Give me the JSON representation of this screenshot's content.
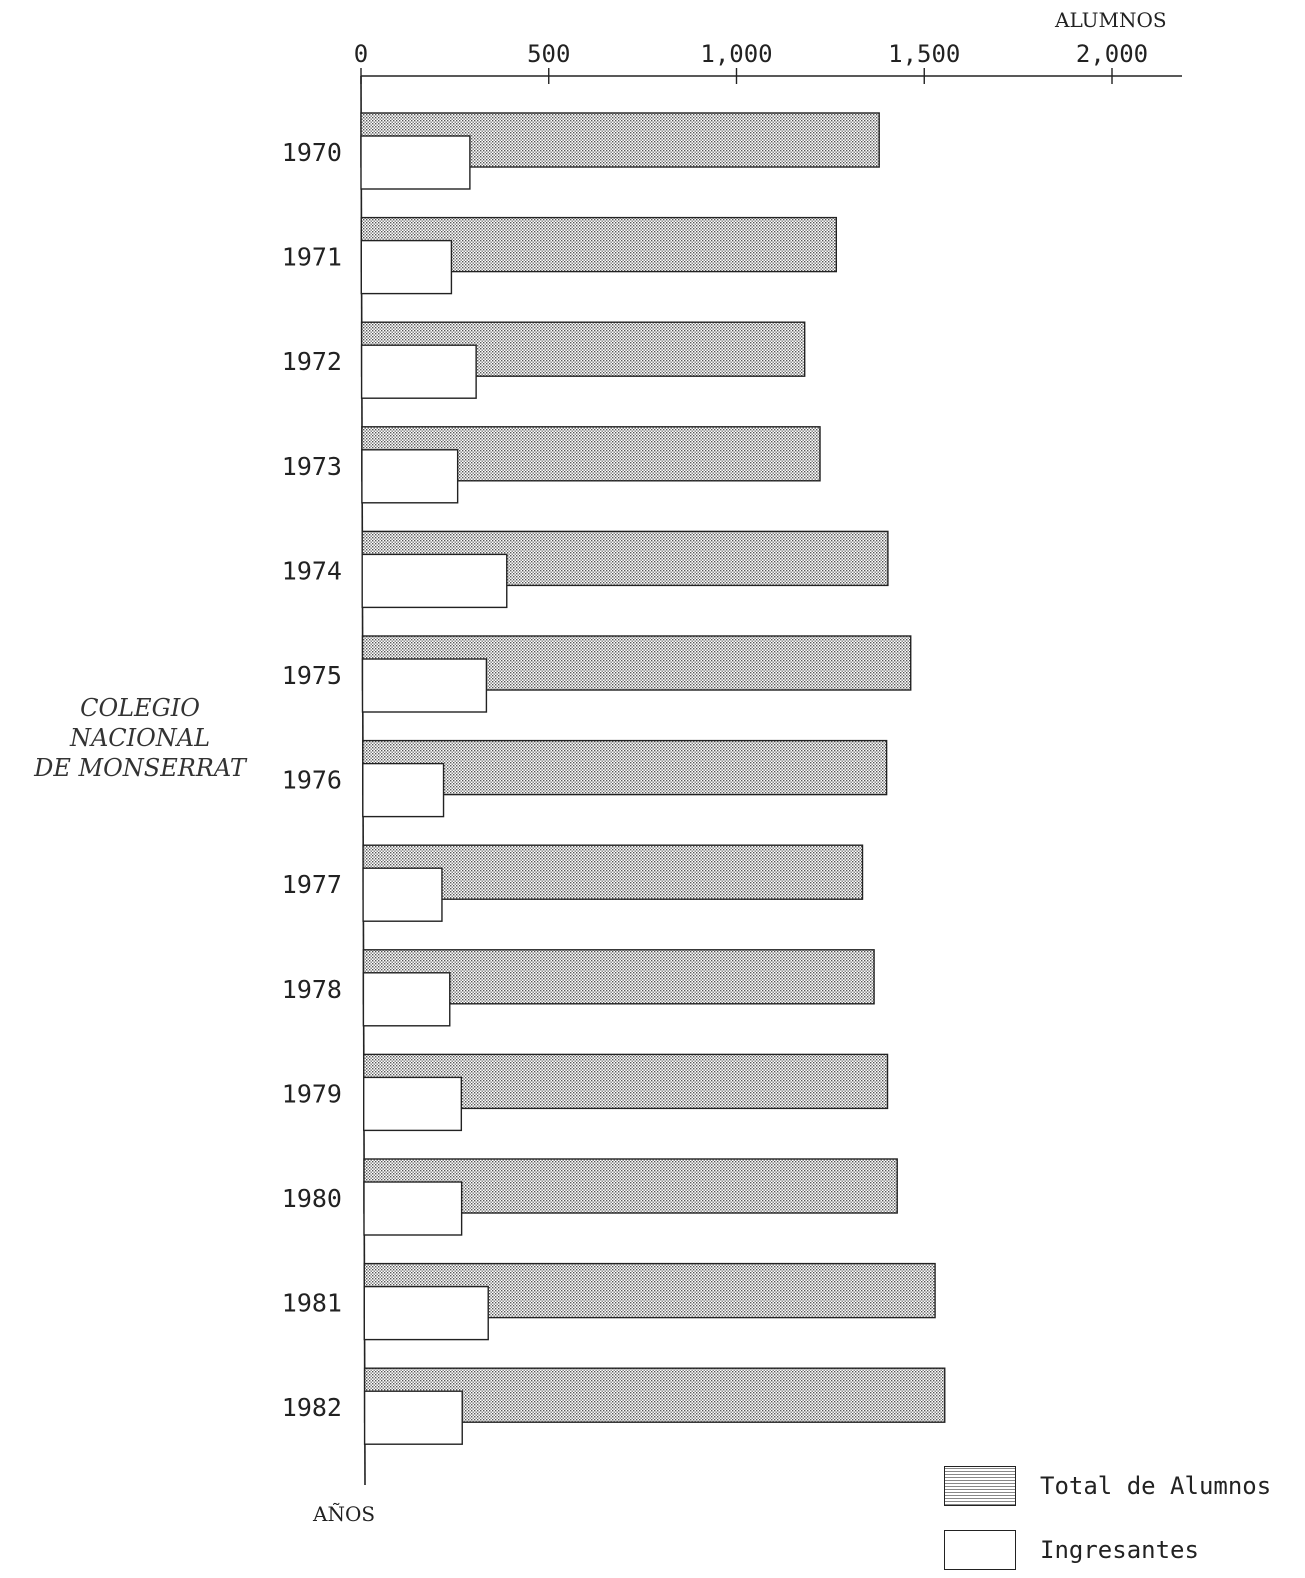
{
  "side_title": [
    "COLEGIO NACIONAL",
    "DE MONSERRAT"
  ],
  "chart_data": {
    "type": "bar",
    "orientation": "horizontal",
    "title": "",
    "xlabel": "ALUMNOS",
    "ylabel": "AÑOS",
    "xlim": [
      0,
      2200
    ],
    "x_ticks": [
      0,
      500,
      1000,
      1500,
      2000
    ],
    "x_tick_labels": [
      "0",
      "500",
      "1,000",
      "1,500",
      "2,000"
    ],
    "categories": [
      "1970",
      "1971",
      "1972",
      "1973",
      "1974",
      "1975",
      "1976",
      "1977",
      "1978",
      "1979",
      "1980",
      "1981",
      "1982"
    ],
    "series": [
      {
        "name": "Total de Alumnos",
        "pattern": "stippled",
        "color": "#9a9a9a",
        "values": [
          1380,
          1265,
          1180,
          1220,
          1400,
          1460,
          1395,
          1330,
          1360,
          1395,
          1420,
          1520,
          1545
        ]
      },
      {
        "name": "Ingresantes",
        "pattern": "outline",
        "color": "#ffffff",
        "values": [
          290,
          240,
          305,
          255,
          385,
          330,
          215,
          210,
          230,
          260,
          260,
          330,
          260
        ]
      }
    ],
    "grid": false,
    "legend_position": "bottom-right"
  }
}
